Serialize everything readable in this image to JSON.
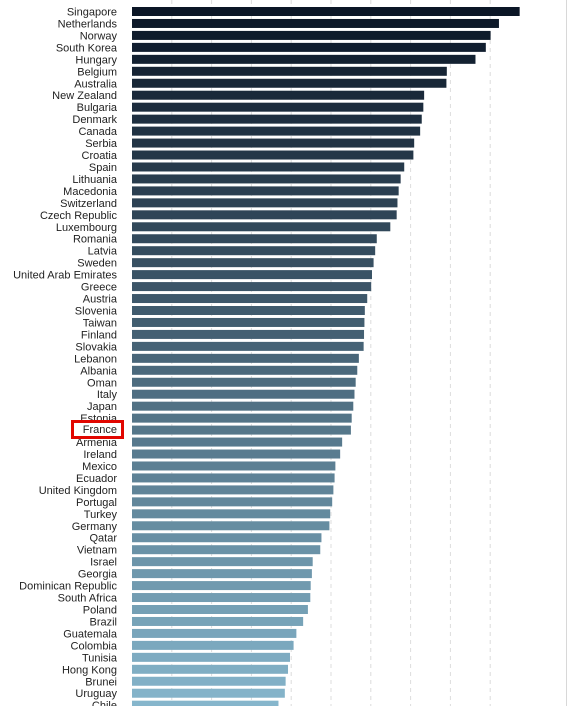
{
  "chart_data": {
    "type": "bar",
    "orientation": "horizontal",
    "categories": [
      "Singapore",
      "Netherlands",
      "Norway",
      "South Korea",
      "Hungary",
      "Belgium",
      "Australia",
      "New Zealand",
      "Bulgaria",
      "Denmark",
      "Canada",
      "Serbia",
      "Croatia",
      "Spain",
      "Lithuania",
      "Macedonia",
      "Switzerland",
      "Czech Republic",
      "Luxembourg",
      "Romania",
      "Latvia",
      "Sweden",
      "United Arab Emirates",
      "Greece",
      "Austria",
      "Slovenia",
      "Taiwan",
      "Finland",
      "Slovakia",
      "Lebanon",
      "Albania",
      "Oman",
      "Italy",
      "Japan",
      "Estonia",
      "France",
      "Armenia",
      "Ireland",
      "Mexico",
      "Ecuador",
      "United Kingdom",
      "Portugal",
      "Turkey",
      "Germany",
      "Qatar",
      "Vietnam",
      "Israel",
      "Georgia",
      "Dominican Republic",
      "South Africa",
      "Poland",
      "Brazil",
      "Guatemala",
      "Colombia",
      "Tunisia",
      "Hong Kong",
      "Brunei",
      "Uruguay",
      "Chile"
    ],
    "values": [
      97.4,
      92.2,
      90.1,
      88.9,
      86.3,
      79.1,
      79.0,
      73.4,
      73.2,
      72.8,
      72.4,
      70.9,
      70.7,
      68.4,
      67.5,
      67.0,
      66.7,
      66.5,
      64.9,
      61.5,
      61.1,
      60.7,
      60.3,
      60.1,
      59.1,
      58.5,
      58.4,
      58.3,
      58.2,
      57.0,
      56.6,
      56.2,
      55.9,
      55.6,
      55.2,
      55.0,
      52.8,
      52.3,
      51.1,
      50.9,
      50.6,
      50.3,
      49.8,
      49.6,
      47.6,
      47.3,
      45.4,
      45.2,
      44.9,
      44.8,
      44.2,
      43.0,
      41.3,
      40.6,
      39.7,
      39.2,
      38.6,
      38.4,
      36.8
    ],
    "highlight": "France",
    "highlight_color": "#e10600",
    "bar_color_start": "#0b1626",
    "bar_color_end": "#86b6cc",
    "grid": true,
    "xlim": [
      0,
      100
    ],
    "title": "",
    "xlabel": "",
    "ylabel": ""
  }
}
